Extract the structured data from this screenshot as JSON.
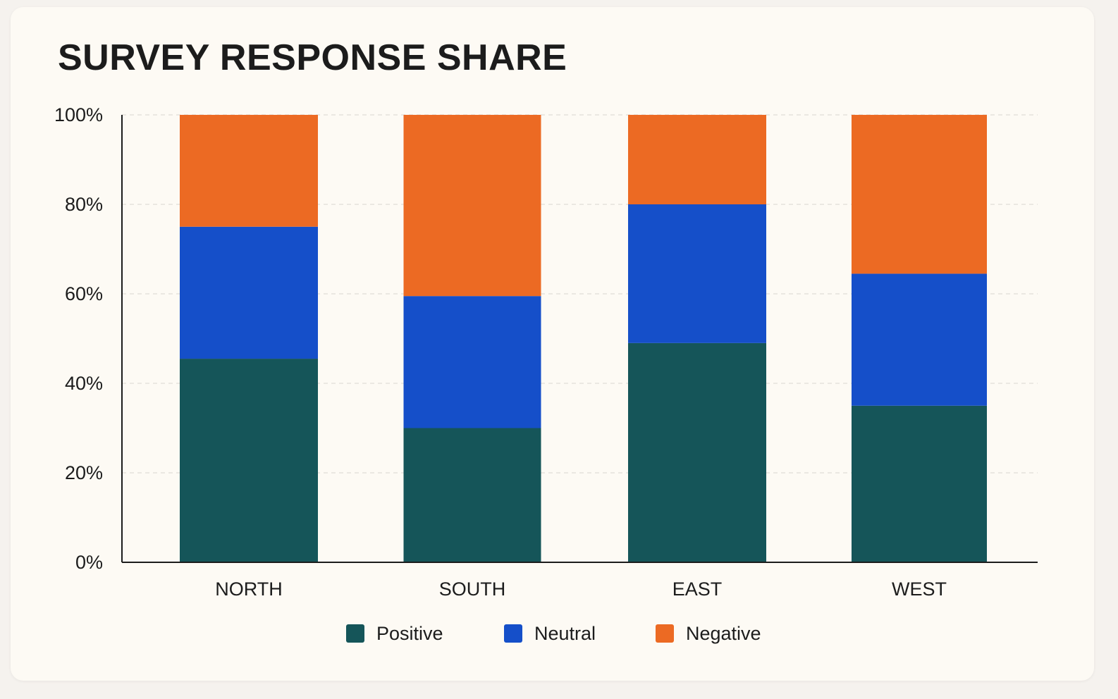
{
  "chart_data": {
    "type": "bar",
    "stacked": true,
    "title": "SURVEY RESPONSE SHARE",
    "categories": [
      "NORTH",
      "SOUTH",
      "EAST",
      "WEST"
    ],
    "series": [
      {
        "name": "Positive",
        "color": "#155559",
        "values": [
          45.5,
          30,
          49,
          35
        ]
      },
      {
        "name": "Neutral",
        "color": "#154fc9",
        "values": [
          29.5,
          29.5,
          31,
          29.5
        ]
      },
      {
        "name": "Negative",
        "color": "#ec6a23",
        "values": [
          25,
          40.5,
          20,
          35.5
        ]
      }
    ],
    "yticks": [
      "0%",
      "20%",
      "40%",
      "60%",
      "80%",
      "100%"
    ],
    "ylim": [
      0,
      100
    ],
    "xlabel": "",
    "ylabel": "",
    "grid": true,
    "legend": "bottom-center"
  }
}
